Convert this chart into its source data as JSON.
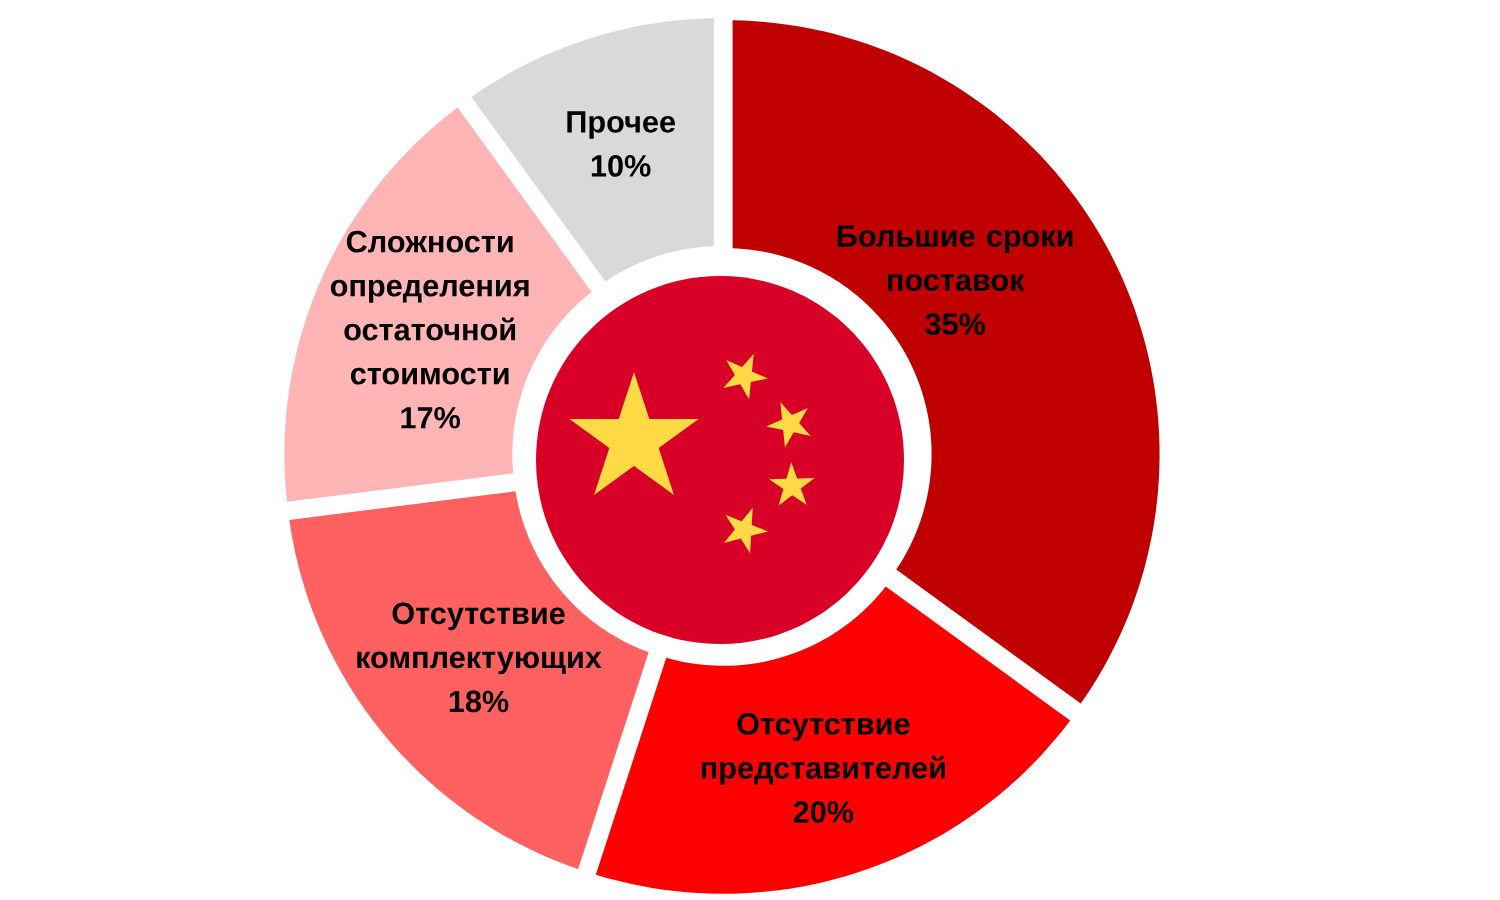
{
  "chart_data": {
    "type": "donut",
    "categories": [
      "Большие сроки поставок",
      "Отсутствие представителей",
      "Отсутствие комплектующих",
      "Сложности определения остаточной стоимости",
      "Прочее"
    ],
    "values": [
      35,
      20,
      18,
      17,
      10
    ],
    "colors": [
      "#c00000",
      "#ff0000",
      "#ff6161",
      "#ffb5b5",
      "#d9d9d9"
    ],
    "value_labels": [
      "35%",
      "20%",
      "18%",
      "17%",
      "10%"
    ]
  }
}
